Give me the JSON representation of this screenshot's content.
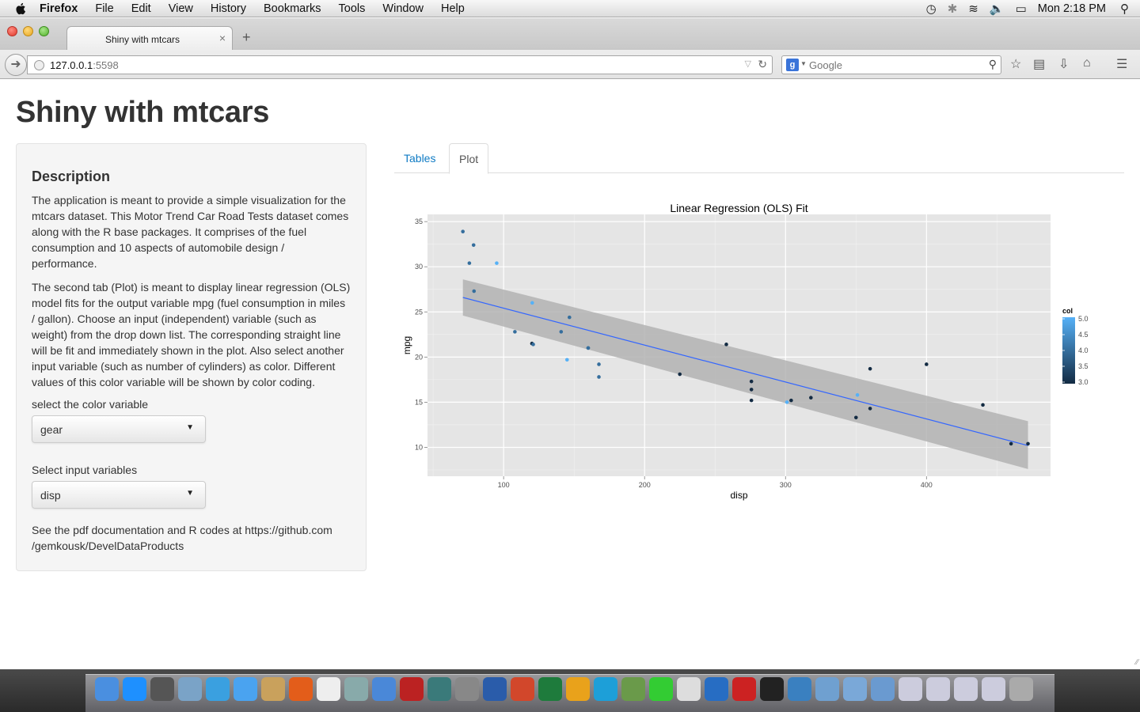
{
  "menubar": {
    "app": "Firefox",
    "items": [
      "File",
      "Edit",
      "View",
      "History",
      "Bookmarks",
      "Tools",
      "Window",
      "Help"
    ],
    "clock": "Mon 2:18 PM"
  },
  "browser": {
    "tab_title": "Shiny with mtcars",
    "url_host": "127.0.0.1",
    "url_port": ":5598",
    "search_placeholder": "Google"
  },
  "page": {
    "title": "Shiny with mtcars",
    "sidebar": {
      "heading": "Description",
      "paragraph1": "The application is meant to provide a simple visualization for the mtcars dataset. This Motor Trend Car Road Tests dataset comes along with the R base packages. It comprises of the fuel consumption and 10 aspects of automobile design / performance.",
      "paragraph2": "The second tab (Plot) is meant to display linear regression (OLS) model fits for the output variable mpg (fuel consumption in miles / gallon). Choose an input (independent) variable (such as weight) from the drop down list. The corresponding straight line will be fit and immediately shown in the plot. Also select another input variable (such as number of cylinders) as color. Different values of this color variable will be shown by color coding.",
      "color_label": "select the color variable",
      "color_value": "gear",
      "input_label": "Select input variables",
      "input_value": "disp",
      "footer": "See the pdf documentation and R codes at https://github.com /gemkousk/DevelDataProducts"
    },
    "tabs": [
      "Tables",
      "Plot"
    ],
    "active_tab": "Plot"
  },
  "chart_data": {
    "type": "scatter",
    "title": "Linear Regression (OLS) Fit",
    "xlabel": "disp",
    "ylabel": "mpg",
    "xlim": [
      46,
      488
    ],
    "ylim": [
      6.8,
      35.8
    ],
    "xticks": [
      100,
      200,
      300,
      400
    ],
    "yticks": [
      10,
      15,
      20,
      25,
      30,
      35
    ],
    "grid": true,
    "legend": {
      "title": "col",
      "placement": "right",
      "ticks": [
        5.0,
        4.5,
        4.0,
        3.5,
        3.0
      ],
      "min": 3.0,
      "max": 5.0,
      "low_color": "#132B43",
      "high_color": "#56B1F7"
    },
    "fit_line": {
      "x": [
        71.1,
        472
      ],
      "y": [
        26.6,
        10.2
      ],
      "color": "#3366FF"
    },
    "confidence_band": {
      "x": [
        71.1,
        472
      ],
      "upper": [
        28.6,
        12.9
      ],
      "lower": [
        24.6,
        7.6
      ],
      "color": "#b3b3b3"
    },
    "points": [
      {
        "x": 160,
        "y": 21.0,
        "col": 4
      },
      {
        "x": 160,
        "y": 21.0,
        "col": 4
      },
      {
        "x": 108,
        "y": 22.8,
        "col": 4
      },
      {
        "x": 258,
        "y": 21.4,
        "col": 3
      },
      {
        "x": 360,
        "y": 18.7,
        "col": 3
      },
      {
        "x": 225,
        "y": 18.1,
        "col": 3
      },
      {
        "x": 360,
        "y": 14.3,
        "col": 3
      },
      {
        "x": 146.7,
        "y": 24.4,
        "col": 4
      },
      {
        "x": 140.8,
        "y": 22.8,
        "col": 4
      },
      {
        "x": 167.6,
        "y": 19.2,
        "col": 4
      },
      {
        "x": 167.6,
        "y": 17.8,
        "col": 4
      },
      {
        "x": 275.8,
        "y": 16.4,
        "col": 3
      },
      {
        "x": 275.8,
        "y": 17.3,
        "col": 3
      },
      {
        "x": 275.8,
        "y": 15.2,
        "col": 3
      },
      {
        "x": 472,
        "y": 10.4,
        "col": 3
      },
      {
        "x": 460,
        "y": 10.4,
        "col": 3
      },
      {
        "x": 440,
        "y": 14.7,
        "col": 3
      },
      {
        "x": 78.7,
        "y": 32.4,
        "col": 4
      },
      {
        "x": 75.7,
        "y": 30.4,
        "col": 4
      },
      {
        "x": 71.1,
        "y": 33.9,
        "col": 4
      },
      {
        "x": 120.1,
        "y": 21.5,
        "col": 3
      },
      {
        "x": 318,
        "y": 15.5,
        "col": 3
      },
      {
        "x": 304,
        "y": 15.2,
        "col": 3
      },
      {
        "x": 350,
        "y": 13.3,
        "col": 3
      },
      {
        "x": 400,
        "y": 19.2,
        "col": 3
      },
      {
        "x": 79,
        "y": 27.3,
        "col": 4
      },
      {
        "x": 120.3,
        "y": 26.0,
        "col": 5
      },
      {
        "x": 95.1,
        "y": 30.4,
        "col": 5
      },
      {
        "x": 351,
        "y": 15.8,
        "col": 5
      },
      {
        "x": 145,
        "y": 19.7,
        "col": 5
      },
      {
        "x": 301,
        "y": 15.0,
        "col": 5
      },
      {
        "x": 121,
        "y": 21.4,
        "col": 4
      }
    ]
  },
  "dock": {
    "icons": [
      "finder-icon",
      "app-store-icon",
      "launchpad-icon",
      "preview-icon",
      "safari-icon",
      "messages-icon",
      "contacts-icon",
      "firefox-icon",
      "calendar-icon",
      "photos-icon",
      "itunes-icon",
      "photobooth-icon",
      "time-machine-icon",
      "system-preferences-icon",
      "word-icon",
      "powerpoint-icon",
      "excel-icon",
      "outlook-icon",
      "lync-icon",
      "network-icon",
      "facetime-icon",
      "textedit-icon",
      "r-icon",
      "acrobat-icon",
      "terminal-icon",
      "xcode-icon",
      "applications-folder-icon",
      "documents-folder-icon",
      "downloads-icon",
      "window-thumb-1-icon",
      "window-thumb-2-icon",
      "window-thumb-3-icon",
      "window-thumb-4-icon",
      "trash-icon"
    ],
    "colors": [
      "#4a8fe0",
      "#1e90ff",
      "#555",
      "#7aa3c7",
      "#3aa0e0",
      "#4aa3f0",
      "#c9a15c",
      "#e35d1a",
      "#eee",
      "#8aa",
      "#4a88d8",
      "#b22",
      "#3a7a7a",
      "#888",
      "#2a5caa",
      "#d2472b",
      "#1e7b3c",
      "#e9a21b",
      "#1d9fd8",
      "#6a9a4a",
      "#3c3",
      "#ddd",
      "#276dc3",
      "#c22",
      "#222",
      "#3a80c0",
      "#6fa0d0",
      "#7aa8d8",
      "#6a9ad0",
      "#ccd",
      "#ccd",
      "#ccd",
      "#ccd",
      "#aaa"
    ]
  }
}
